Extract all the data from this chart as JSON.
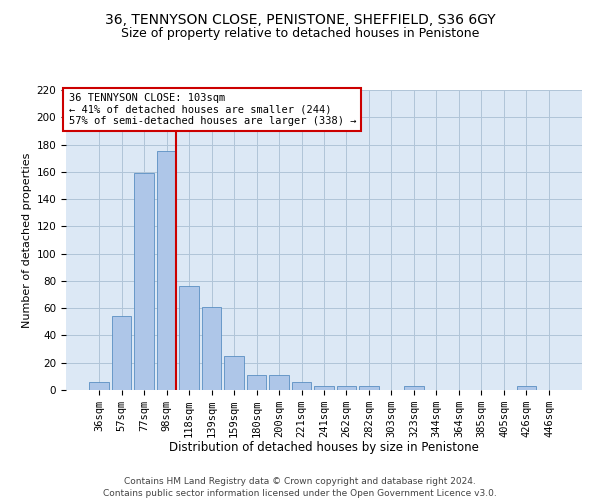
{
  "title1": "36, TENNYSON CLOSE, PENISTONE, SHEFFIELD, S36 6GY",
  "title2": "Size of property relative to detached houses in Penistone",
  "xlabel": "Distribution of detached houses by size in Penistone",
  "ylabel": "Number of detached properties",
  "categories": [
    "36sqm",
    "57sqm",
    "77sqm",
    "98sqm",
    "118sqm",
    "139sqm",
    "159sqm",
    "180sqm",
    "200sqm",
    "221sqm",
    "241sqm",
    "262sqm",
    "282sqm",
    "303sqm",
    "323sqm",
    "344sqm",
    "364sqm",
    "385sqm",
    "405sqm",
    "426sqm",
    "446sqm"
  ],
  "values": [
    6,
    54,
    159,
    175,
    76,
    61,
    25,
    11,
    11,
    6,
    3,
    3,
    3,
    0,
    3,
    0,
    0,
    0,
    0,
    3,
    0
  ],
  "bar_color": "#aec6e8",
  "bar_edge_color": "#5a8fc2",
  "grid_color": "#b0c4d8",
  "background_color": "#dce8f5",
  "annotation_text": "36 TENNYSON CLOSE: 103sqm\n← 41% of detached houses are smaller (244)\n57% of semi-detached houses are larger (338) →",
  "annotation_box_color": "#ffffff",
  "annotation_box_edge": "#cc0000",
  "vline_color": "#cc0000",
  "ylim": [
    0,
    220
  ],
  "yticks": [
    0,
    20,
    40,
    60,
    80,
    100,
    120,
    140,
    160,
    180,
    200,
    220
  ],
  "footer1": "Contains HM Land Registry data © Crown copyright and database right 2024.",
  "footer2": "Contains public sector information licensed under the Open Government Licence v3.0.",
  "title1_fontsize": 10,
  "title2_fontsize": 9,
  "xlabel_fontsize": 8.5,
  "ylabel_fontsize": 8,
  "tick_fontsize": 7.5,
  "annotation_fontsize": 7.5,
  "footer_fontsize": 6.5
}
